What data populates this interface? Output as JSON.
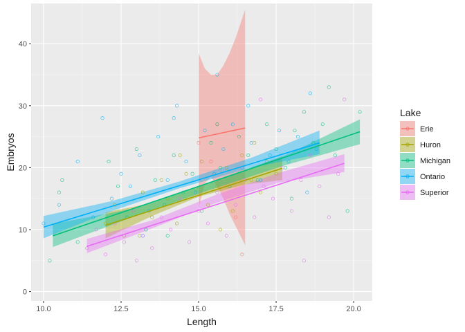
{
  "chart_data": {
    "type": "scatter",
    "xlabel": "Length",
    "ylabel": "Embryos",
    "xlim": [
      9.6,
      20.6
    ],
    "ylim": [
      -1.5,
      46.5
    ],
    "x_ticks": [
      10.0,
      12.5,
      15.0,
      17.5,
      20.0
    ],
    "x_tick_labels": [
      "10.0",
      "12.5",
      "15.0",
      "17.5",
      "20.0"
    ],
    "y_ticks": [
      0,
      10,
      20,
      30,
      40
    ],
    "y_tick_labels": [
      "0",
      "10",
      "20",
      "30",
      "40"
    ],
    "grid": true,
    "legend": {
      "title": "Lake",
      "placement": "right"
    },
    "series": [
      {
        "name": "Erie",
        "color": "#F8766D",
        "fit": {
          "x": [
            15.0,
            16.5
          ],
          "y": [
            24.8,
            26.4
          ]
        },
        "band": {
          "x": [
            15.0,
            15.2,
            15.4,
            15.6,
            15.8,
            16.0,
            16.2,
            16.5
          ],
          "lower": [
            13.5,
            17.5,
            18.5,
            17.0,
            15.0,
            12.5,
            10.5,
            7.5
          ],
          "upper": [
            38.5,
            36.0,
            35.0,
            35.0,
            36.5,
            38.5,
            41.0,
            45.5
          ]
        },
        "points": [
          [
            15.0,
            24.0
          ],
          [
            15.4,
            21.0
          ],
          [
            15.6,
            27.0
          ],
          [
            16.2,
            12.0
          ],
          [
            16.4,
            6.0
          ]
        ]
      },
      {
        "name": "Huron",
        "color": "#A3A500",
        "fit": {
          "x": [
            12.0,
            17.7
          ],
          "y": [
            10.7,
            19.9
          ]
        },
        "band": {
          "x": [
            12.0,
            13.5,
            15.0,
            16.5,
            17.7
          ],
          "lower": [
            8.6,
            12.2,
            15.3,
            17.3,
            18.0
          ],
          "upper": [
            12.8,
            14.3,
            17.0,
            19.6,
            21.8
          ]
        },
        "points": [
          [
            12.0,
            11.0
          ],
          [
            12.3,
            14.0
          ],
          [
            12.6,
            9.0
          ],
          [
            12.9,
            13.0
          ],
          [
            13.2,
            16.0
          ],
          [
            13.5,
            12.0
          ],
          [
            13.8,
            18.0
          ],
          [
            14.0,
            15.0
          ],
          [
            14.3,
            11.0
          ],
          [
            14.6,
            19.0
          ],
          [
            14.9,
            16.0
          ],
          [
            15.1,
            21.0
          ],
          [
            15.3,
            14.0
          ],
          [
            15.6,
            17.0
          ],
          [
            15.9,
            20.0
          ],
          [
            16.1,
            13.0
          ],
          [
            16.4,
            22.0
          ],
          [
            16.7,
            18.0
          ],
          [
            17.0,
            16.0
          ],
          [
            17.2,
            21.0
          ],
          [
            17.5,
            19.0
          ],
          [
            13.1,
            9.0
          ],
          [
            14.4,
            22.0
          ],
          [
            15.7,
            10.0
          ],
          [
            16.8,
            24.0
          ]
        ]
      },
      {
        "name": "Michigan",
        "color": "#00BF7D",
        "fit": {
          "x": [
            10.3,
            20.2
          ],
          "y": [
            9.0,
            25.8
          ]
        },
        "band": {
          "x": [
            10.3,
            12.8,
            15.3,
            17.8,
            20.2
          ],
          "lower": [
            7.2,
            11.9,
            16.3,
            20.4,
            23.8
          ],
          "upper": [
            10.9,
            13.3,
            17.6,
            22.0,
            27.8
          ]
        },
        "points": [
          [
            10.2,
            5.0
          ],
          [
            10.5,
            16.0
          ],
          [
            10.6,
            18.0
          ],
          [
            11.1,
            8.0
          ],
          [
            12.1,
            21.0
          ],
          [
            12.4,
            17.0
          ],
          [
            12.7,
            12.0
          ],
          [
            13.0,
            23.0
          ],
          [
            13.3,
            10.0
          ],
          [
            13.6,
            18.0
          ],
          [
            13.9,
            14.0
          ],
          [
            14.2,
            22.0
          ],
          [
            14.5,
            16.0
          ],
          [
            14.8,
            19.0
          ],
          [
            15.1,
            13.0
          ],
          [
            15.4,
            24.0
          ],
          [
            15.7,
            20.0
          ],
          [
            16.0,
            17.0
          ],
          [
            16.3,
            25.0
          ],
          [
            16.6,
            22.0
          ],
          [
            16.9,
            18.0
          ],
          [
            17.2,
            27.0
          ],
          [
            17.5,
            23.0
          ],
          [
            17.8,
            20.0
          ],
          [
            18.1,
            26.0
          ],
          [
            18.4,
            29.0
          ],
          [
            18.7,
            24.0
          ],
          [
            19.0,
            27.0
          ],
          [
            19.2,
            33.0
          ],
          [
            19.4,
            22.0
          ],
          [
            19.8,
            13.0
          ],
          [
            20.2,
            29.0
          ],
          [
            18.0,
            15.0
          ],
          [
            15.6,
            27.0
          ],
          [
            14.0,
            9.0
          ]
        ]
      },
      {
        "name": "Ontario",
        "color": "#00B0F6",
        "fit": {
          "x": [
            10.0,
            18.9
          ],
          "y": [
            10.4,
            24.0
          ]
        },
        "band": {
          "x": [
            10.0,
            12.2,
            14.4,
            16.7,
            18.9
          ],
          "lower": [
            8.6,
            13.0,
            16.7,
            20.0,
            22.2
          ],
          "upper": [
            12.2,
            14.6,
            17.8,
            21.6,
            26.0
          ]
        },
        "points": [
          [
            10.0,
            11.0
          ],
          [
            10.5,
            14.0
          ],
          [
            11.1,
            21.0
          ],
          [
            11.6,
            12.0
          ],
          [
            11.9,
            28.0
          ],
          [
            12.2,
            15.0
          ],
          [
            12.5,
            19.0
          ],
          [
            12.8,
            17.0
          ],
          [
            13.1,
            22.0
          ],
          [
            13.4,
            13.0
          ],
          [
            13.7,
            25.0
          ],
          [
            14.0,
            18.0
          ],
          [
            14.2,
            28.0
          ],
          [
            14.3,
            30.0
          ],
          [
            14.6,
            21.0
          ],
          [
            14.9,
            16.0
          ],
          [
            15.2,
            26.0
          ],
          [
            15.5,
            19.0
          ],
          [
            15.8,
            23.0
          ],
          [
            16.1,
            27.0
          ],
          [
            16.4,
            20.0
          ],
          [
            16.7,
            24.0
          ],
          [
            17.0,
            18.0
          ],
          [
            17.3,
            22.0
          ],
          [
            17.6,
            26.0
          ],
          [
            17.9,
            21.0
          ],
          [
            18.2,
            25.0
          ],
          [
            18.5,
            16.0
          ],
          [
            18.8,
            23.0
          ],
          [
            15.6,
            35.0
          ],
          [
            16.6,
            30.0
          ],
          [
            13.2,
            9.0
          ],
          [
            18.6,
            32.0
          ]
        ]
      },
      {
        "name": "Superior",
        "color": "#E76BF3",
        "fit": {
          "x": [
            11.4,
            19.7
          ],
          "y": [
            7.3,
            20.7
          ]
        },
        "band": {
          "x": [
            11.4,
            13.5,
            15.5,
            17.6,
            19.7
          ],
          "lower": [
            6.2,
            10.2,
            14.2,
            17.6,
            19.3
          ],
          "upper": [
            8.5,
            11.5,
            15.5,
            19.2,
            22.2
          ]
        },
        "points": [
          [
            11.4,
            7.0
          ],
          [
            11.7,
            10.0
          ],
          [
            12.0,
            6.0
          ],
          [
            12.3,
            11.0
          ],
          [
            12.6,
            8.0
          ],
          [
            12.9,
            13.0
          ],
          [
            13.2,
            9.0
          ],
          [
            13.5,
            7.0
          ],
          [
            13.8,
            12.0
          ],
          [
            14.1,
            10.0
          ],
          [
            14.4,
            15.0
          ],
          [
            14.7,
            8.0
          ],
          [
            15.0,
            13.0
          ],
          [
            15.3,
            11.0
          ],
          [
            15.6,
            16.0
          ],
          [
            15.9,
            9.0
          ],
          [
            16.2,
            14.0
          ],
          [
            16.5,
            18.0
          ],
          [
            16.8,
            12.0
          ],
          [
            17.1,
            17.0
          ],
          [
            17.4,
            15.0
          ],
          [
            17.7,
            20.0
          ],
          [
            18.0,
            13.0
          ],
          [
            18.3,
            18.0
          ],
          [
            18.6,
            22.0
          ],
          [
            18.9,
            17.0
          ],
          [
            19.2,
            12.0
          ],
          [
            19.5,
            19.0
          ],
          [
            19.7,
            31.0
          ],
          [
            17.0,
            31.0
          ],
          [
            18.4,
            5.0
          ],
          [
            13.0,
            5.0
          ]
        ]
      }
    ]
  }
}
